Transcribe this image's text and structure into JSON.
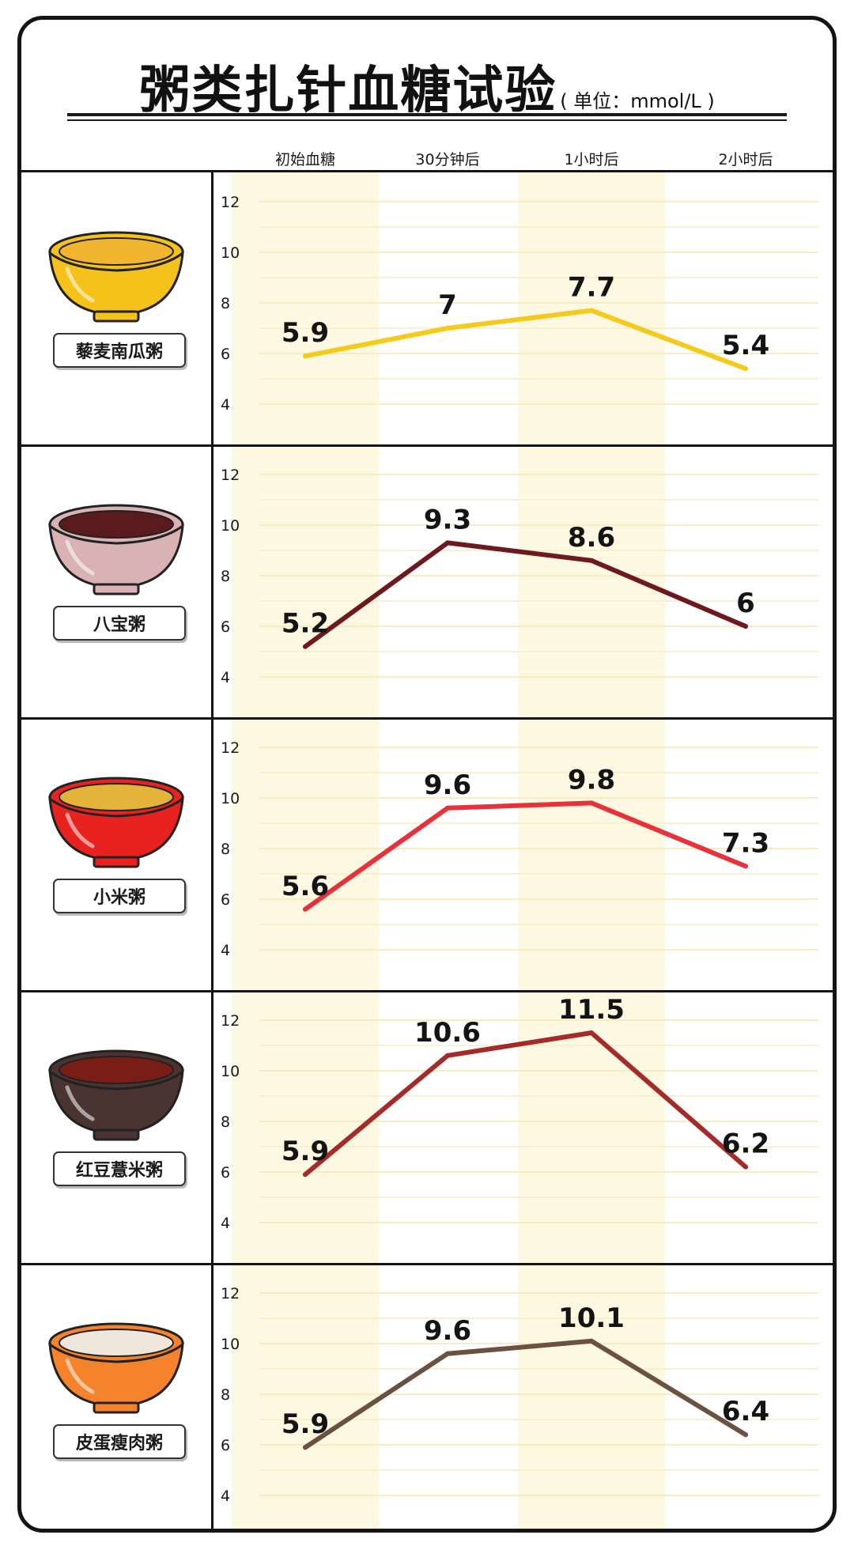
{
  "title": "粥类扎针血糖试验",
  "unit": "( 单位：mmol/L )",
  "colors": {
    "highlight_band": "#fdf8e2",
    "gridline": "#f6ecc6",
    "frame": "#141414"
  },
  "chart_data": {
    "type": "line",
    "categories": [
      "初始血糖",
      "30分钟后",
      "1小时后",
      "2小时后"
    ],
    "y_ticks": [
      "12",
      "10",
      "8",
      "6",
      "4"
    ],
    "ylim": [
      4,
      12
    ],
    "grid": true,
    "highlighted_categories": [
      "初始血糖",
      "1小时后"
    ],
    "panels": [
      {
        "label": "藜麦南瓜粥",
        "bowl_icon": "quinoa-pumpkin-porridge-bowl-icon",
        "bowl_color": "#f5c21b",
        "bowl_fill": "#f2b530",
        "line_color": "#f4cb1c",
        "values": [
          5.9,
          7,
          7.7,
          5.4
        ],
        "value_labels": [
          "5.9",
          "7",
          "7.7",
          "5.4"
        ]
      },
      {
        "label": "八宝粥",
        "bowl_icon": "eight-treasure-porridge-bowl-icon",
        "bowl_color": "#d9b2b4",
        "bowl_fill": "#5a1a1e",
        "line_color": "#6e1920",
        "values": [
          5.2,
          9.3,
          8.6,
          6
        ],
        "value_labels": [
          "5.2",
          "9.3",
          "8.6",
          "6"
        ]
      },
      {
        "label": "小米粥",
        "bowl_icon": "millet-porridge-bowl-icon",
        "bowl_color": "#e8221e",
        "bowl_fill": "#e3b33a",
        "line_color": "#e8323a",
        "values": [
          5.6,
          9.6,
          9.8,
          7.3
        ],
        "value_labels": [
          "5.6",
          "9.6",
          "9.8",
          "7.3"
        ]
      },
      {
        "label": "红豆薏米粥",
        "bowl_icon": "red-bean-coix-porridge-bowl-icon",
        "bowl_color": "#4a3432",
        "bowl_fill": "#7a1d17",
        "line_color": "#a52a2a",
        "values": [
          5.9,
          10.6,
          11.5,
          6.2
        ],
        "value_labels": [
          "5.9",
          "10.6",
          "11.5",
          "6.2"
        ]
      },
      {
        "label": "皮蛋瘦肉粥",
        "bowl_icon": "century-egg-pork-porridge-bowl-icon",
        "bowl_color": "#f4832c",
        "bowl_fill": "#efe7dc",
        "line_color": "#6b5240",
        "values": [
          5.9,
          9.6,
          10.1,
          6.4
        ],
        "value_labels": [
          "5.9",
          "9.6",
          "10.1",
          "6.4"
        ]
      }
    ]
  }
}
